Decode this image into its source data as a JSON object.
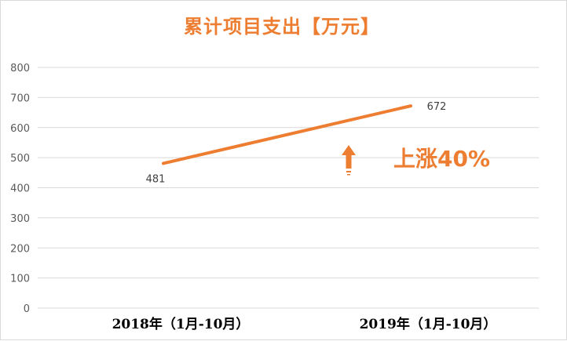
{
  "chart_data": {
    "type": "line",
    "title": "累计项目支出【万元】",
    "categories": [
      "2018年（1月-10月）",
      "2019年（1月-10月）"
    ],
    "series": [
      {
        "values": [
          481,
          672
        ],
        "data_labels": [
          "481",
          "672"
        ]
      }
    ],
    "y_ticks": [
      "0",
      "100",
      "200",
      "300",
      "400",
      "500",
      "600",
      "700",
      "800"
    ],
    "ylim": [
      0,
      800
    ],
    "grid": true,
    "legend": "none",
    "annotation": {
      "text": "上涨40%",
      "icon": "up-arrow-icon"
    },
    "colors": {
      "line": "#ed7d31",
      "title": "#ed7d31",
      "grid": "#d9d9d9"
    }
  }
}
